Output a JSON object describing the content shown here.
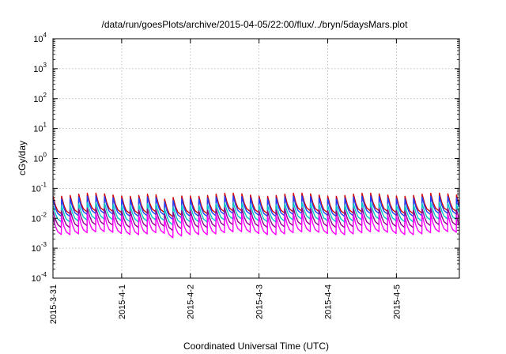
{
  "chart_data": {
    "type": "line",
    "title": "/data/run/goesPlots/archive/2015-04-05/22:00/flux/../bryn/5daysMars.plot",
    "xlabel": "Coordinated Universal Time (UTC)",
    "ylabel": "cGy/day",
    "yscale": "log",
    "ylim": [
      0.0001,
      10000
    ],
    "xlim": [
      "2015-03-31T00:00",
      "2015-04-05T22:00"
    ],
    "x_ticks": [
      "2015-3-31",
      "2015-4-1",
      "2015-4-2",
      "2015-4-3",
      "2015-4-4",
      "2015-4-5"
    ],
    "y_ticks": [
      {
        "base": "10",
        "exp": "-4",
        "value": 0.0001
      },
      {
        "base": "10",
        "exp": "-3",
        "value": 0.001
      },
      {
        "base": "10",
        "exp": "-2",
        "value": 0.01
      },
      {
        "base": "10",
        "exp": "-1",
        "value": 0.1
      },
      {
        "base": "10",
        "exp": "0",
        "value": 1
      },
      {
        "base": "10",
        "exp": "1",
        "value": 10
      },
      {
        "base": "10",
        "exp": "2",
        "value": 100
      },
      {
        "base": "10",
        "exp": "3",
        "value": 1000
      },
      {
        "base": "10",
        "exp": "4",
        "value": 10000
      }
    ],
    "grid": true,
    "sawtooth_period_hours": 3,
    "dip_time": "2015-04-01T16:00",
    "series": [
      {
        "color": "#d40000",
        "peak": 0.062,
        "trough": 0.016
      },
      {
        "color": "#2040ff",
        "peak": 0.05,
        "trough": 0.013
      },
      {
        "color": "#00c8c8",
        "peak": 0.03,
        "trough": 0.0085
      },
      {
        "color": "#900090",
        "peak": 0.02,
        "trough": 0.0055
      },
      {
        "color": "#ff00ff",
        "peak": 0.013,
        "trough": 0.0032
      }
    ]
  }
}
